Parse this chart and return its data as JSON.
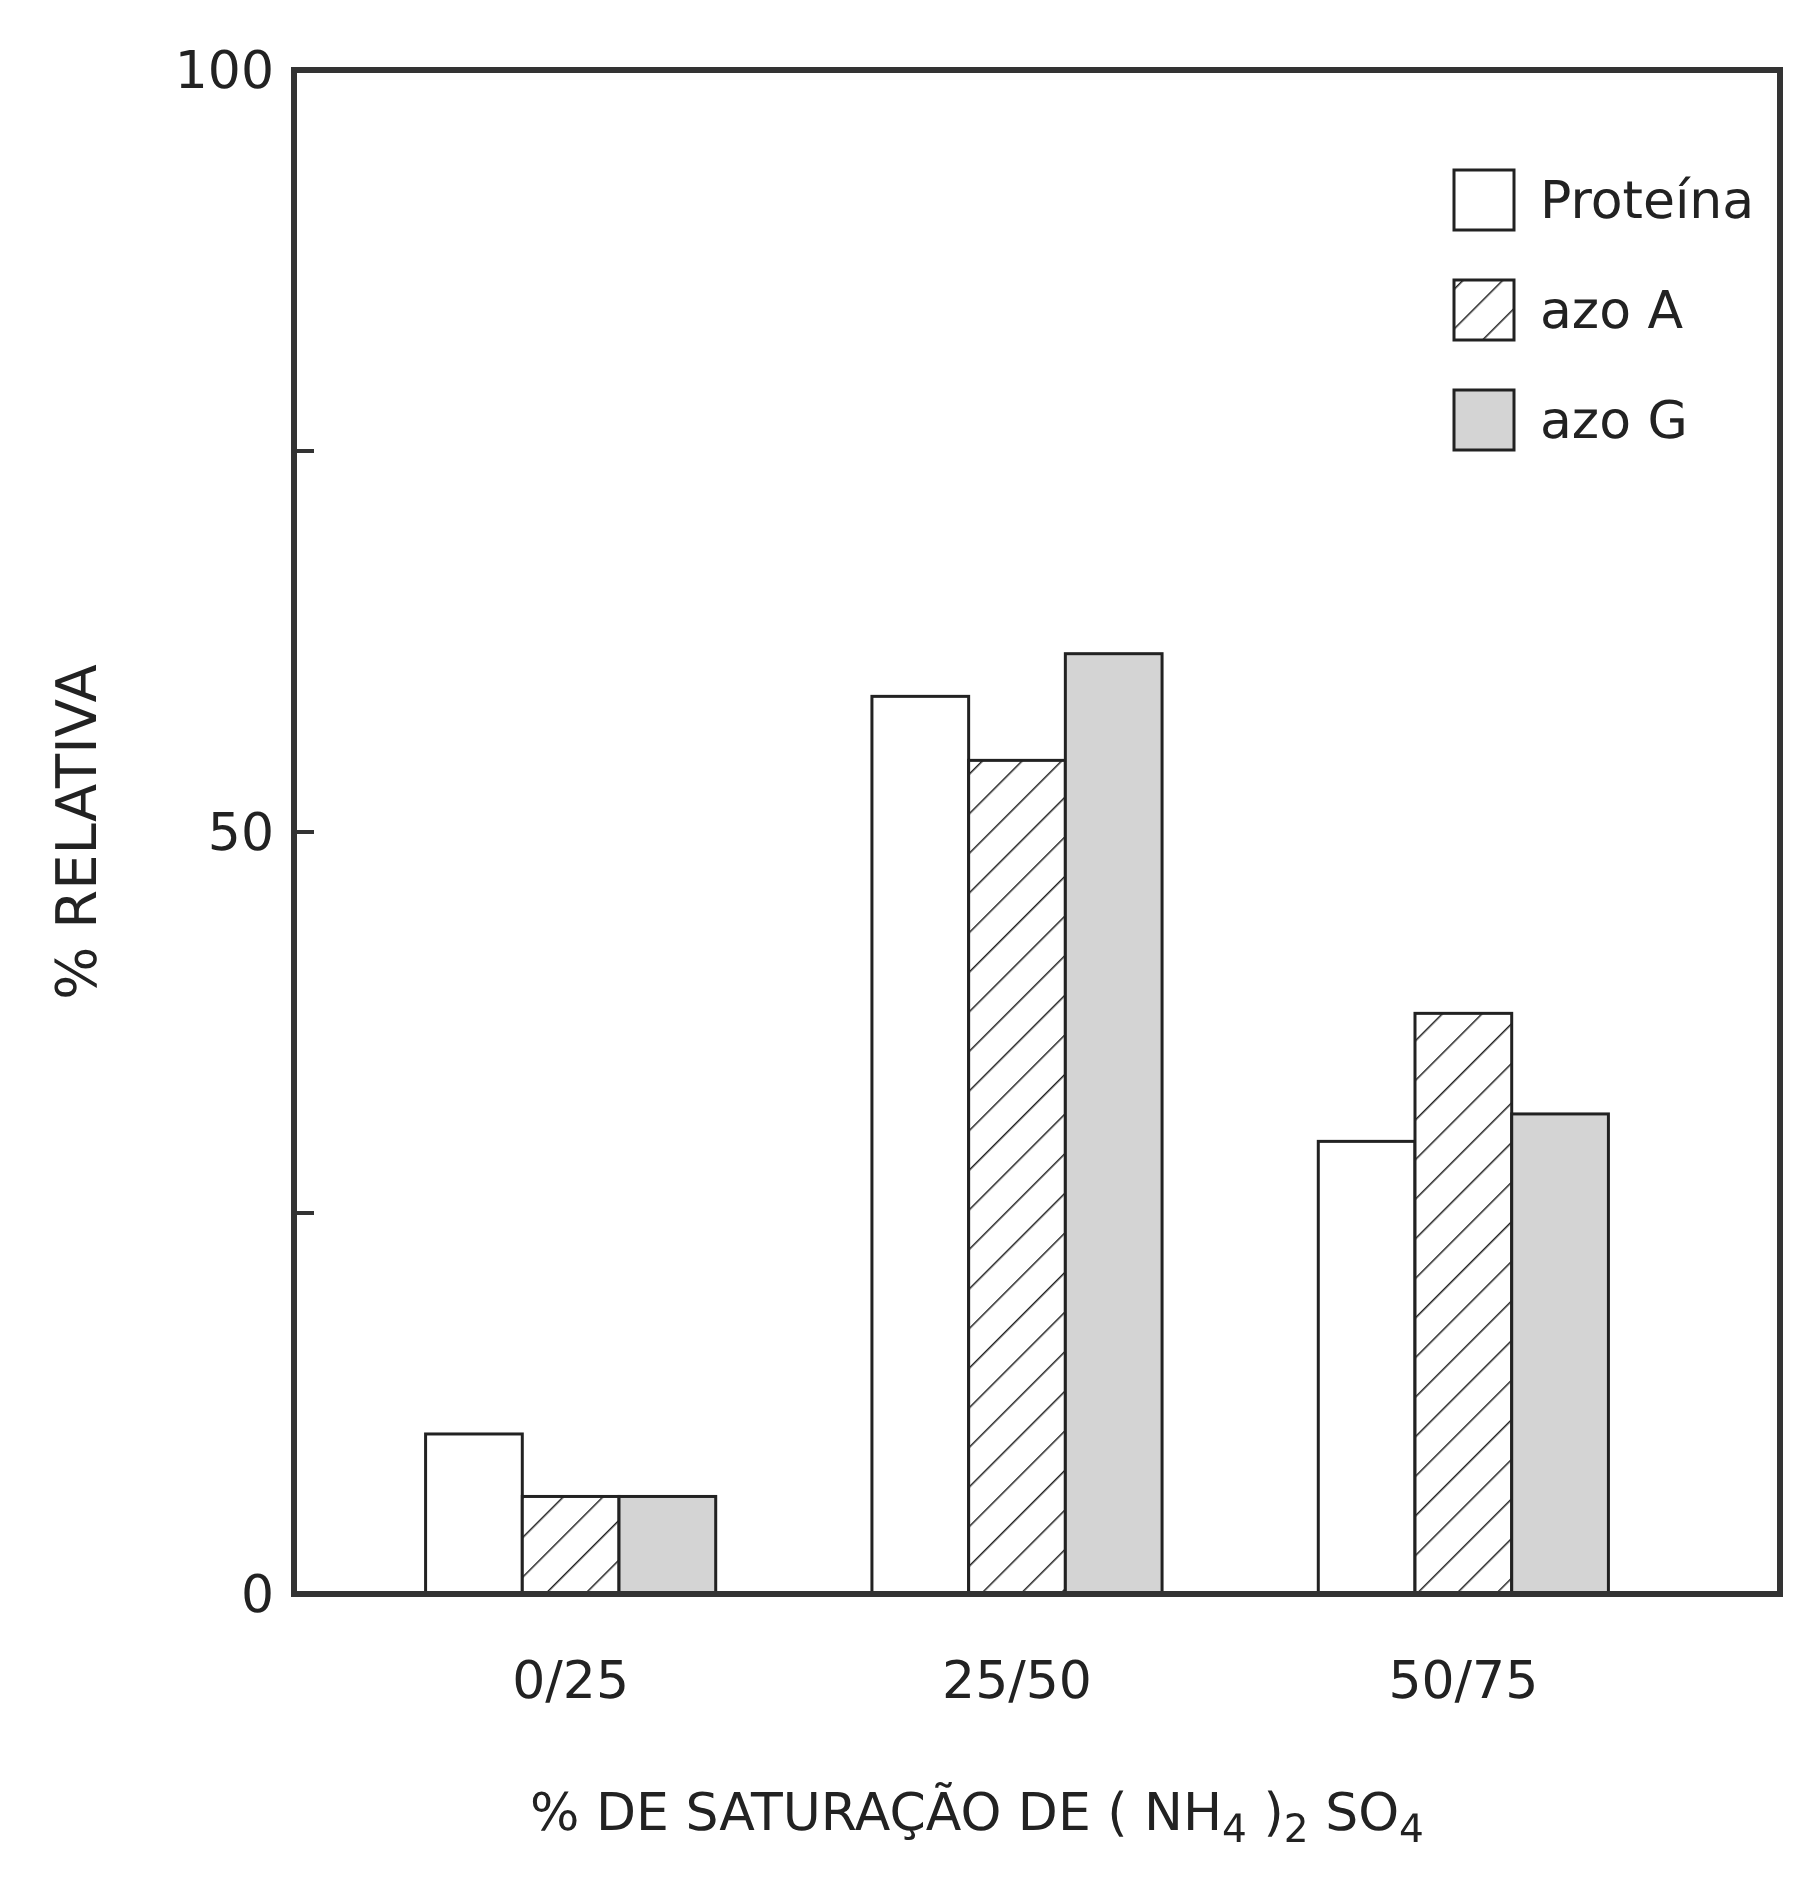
{
  "chart_data": {
    "type": "bar",
    "xlabel": "% DE SATURAÇÃO DE ( NH$_{4}$ )$_{2}$ SO$_{4}$",
    "ylabel": "% RELATIVA",
    "categories": [
      "0/25",
      "25/50",
      "50/75"
    ],
    "series": [
      {
        "name": "Proteína",
        "color": "#ffffff",
        "values": [
          10.5,
          58.9,
          29.7
        ]
      },
      {
        "name": "azo A",
        "color": "#222222",
        "values": [
          6.4,
          54.7,
          38.1
        ]
      },
      {
        "name": "azo G",
        "color": "#d4d4d4",
        "values": [
          6.4,
          61.7,
          31.5
        ]
      }
    ],
    "ylim": [
      0,
      100
    ],
    "yticks": [
      0,
      {
        "value": 25,
        "label": null
      },
      50,
      {
        "value": 75,
        "label": null
      },
      100
    ],
    "grid": false,
    "legend": "top right"
  }
}
